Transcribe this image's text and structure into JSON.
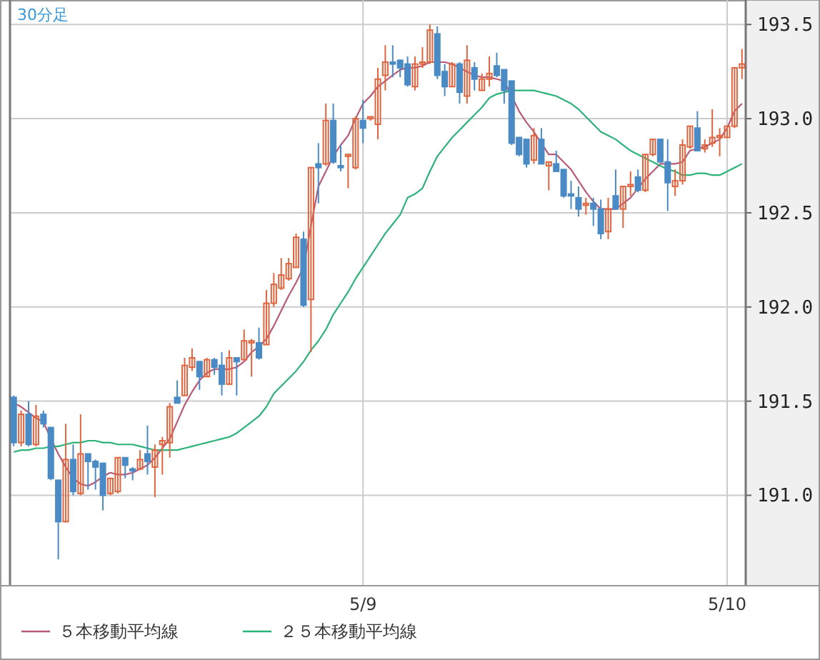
{
  "chart_data": {
    "type": "candlestick",
    "title": "30分足",
    "categories": [
      null,
      null,
      null,
      null,
      null,
      null,
      null,
      null,
      null,
      null,
      null,
      null,
      null,
      null,
      null,
      null,
      null,
      null,
      null,
      null,
      null,
      null,
      null,
      null,
      null,
      null,
      null,
      null,
      null,
      null,
      null,
      null,
      null,
      null,
      null,
      null,
      null,
      null,
      null,
      null,
      null,
      null,
      null,
      null,
      null,
      null,
      null,
      "5/9",
      null,
      null,
      null,
      null,
      null,
      null,
      null,
      null,
      null,
      null,
      null,
      null,
      null,
      null,
      null,
      null,
      null,
      null,
      null,
      null,
      null,
      null,
      null,
      null,
      null,
      null,
      null,
      null,
      null,
      null,
      null,
      null,
      null,
      null,
      null,
      null,
      null,
      null,
      null,
      null,
      null,
      null,
      null,
      null,
      null,
      null,
      null,
      null,
      "5/10",
      null,
      null
    ],
    "ohlc": [
      [
        191.52,
        191.53,
        191.26,
        191.28
      ],
      [
        191.28,
        191.45,
        191.26,
        191.43
      ],
      [
        191.43,
        191.5,
        191.26,
        191.27
      ],
      [
        191.27,
        191.48,
        191.26,
        191.42
      ],
      [
        191.43,
        191.45,
        191.36,
        191.38
      ],
      [
        191.36,
        191.36,
        191.08,
        191.09
      ],
      [
        191.08,
        191.08,
        190.66,
        190.86
      ],
      [
        190.86,
        191.38,
        190.86,
        191.19
      ],
      [
        191.19,
        191.27,
        191.0,
        191.02
      ],
      [
        191.01,
        191.43,
        191.0,
        191.22
      ],
      [
        191.22,
        191.22,
        191.03,
        191.18
      ],
      [
        191.18,
        191.19,
        191.03,
        191.15
      ],
      [
        191.17,
        191.17,
        190.92,
        191.0
      ],
      [
        191.01,
        191.09,
        191.0,
        191.09
      ],
      [
        191.02,
        191.2,
        191.01,
        191.2
      ],
      [
        191.2,
        191.2,
        191.09,
        191.16
      ],
      [
        191.14,
        191.15,
        191.08,
        191.13
      ],
      [
        191.14,
        191.24,
        191.14,
        191.19
      ],
      [
        191.22,
        191.37,
        191.11,
        191.18
      ],
      [
        191.15,
        191.27,
        190.99,
        191.24
      ],
      [
        191.27,
        191.31,
        191.11,
        191.29
      ],
      [
        191.28,
        191.49,
        191.2,
        191.47
      ],
      [
        191.52,
        191.61,
        191.49,
        191.49
      ],
      [
        191.53,
        191.73,
        191.53,
        191.69
      ],
      [
        191.68,
        191.78,
        191.66,
        191.73
      ],
      [
        191.71,
        191.71,
        191.56,
        191.63
      ],
      [
        191.63,
        191.73,
        191.63,
        191.72
      ],
      [
        191.72,
        191.73,
        191.64,
        191.68
      ],
      [
        191.69,
        191.76,
        191.53,
        191.59
      ],
      [
        191.59,
        191.77,
        191.59,
        191.73
      ],
      [
        191.73,
        191.73,
        191.53,
        191.71
      ],
      [
        191.72,
        191.88,
        191.72,
        191.82
      ],
      [
        191.81,
        191.83,
        191.63,
        191.82
      ],
      [
        191.81,
        191.89,
        191.72,
        191.73
      ],
      [
        191.8,
        192.09,
        191.8,
        192.02
      ],
      [
        192.02,
        192.18,
        192.0,
        192.12
      ],
      [
        192.1,
        192.26,
        192.09,
        192.17
      ],
      [
        192.15,
        192.26,
        192.14,
        192.23
      ],
      [
        192.21,
        192.39,
        192.21,
        192.37
      ],
      [
        192.36,
        192.4,
        192.0,
        192.01
      ],
      [
        192.04,
        192.74,
        191.76,
        192.74
      ],
      [
        192.76,
        192.87,
        192.55,
        192.74
      ],
      [
        192.76,
        193.08,
        192.75,
        192.99
      ],
      [
        192.99,
        193.08,
        192.76,
        192.77
      ],
      [
        192.75,
        192.86,
        192.72,
        192.74
      ],
      [
        192.8,
        192.81,
        192.63,
        192.81
      ],
      [
        192.74,
        193.01,
        192.73,
        193.0
      ],
      [
        192.99,
        193.1,
        192.87,
        192.95
      ],
      [
        193.0,
        193.01,
        192.99,
        193.01
      ],
      [
        192.97,
        193.27,
        192.89,
        193.21
      ],
      [
        193.23,
        193.39,
        193.15,
        193.3
      ],
      [
        193.3,
        193.39,
        193.22,
        193.29
      ],
      [
        193.31,
        193.31,
        193.22,
        193.27
      ],
      [
        193.29,
        193.33,
        193.17,
        193.18
      ],
      [
        193.17,
        193.33,
        193.15,
        193.29
      ],
      [
        193.29,
        193.38,
        193.27,
        193.3
      ],
      [
        193.3,
        193.5,
        193.29,
        193.47
      ],
      [
        193.45,
        193.49,
        193.21,
        193.23
      ],
      [
        193.25,
        193.29,
        193.12,
        193.17
      ],
      [
        193.17,
        193.3,
        193.17,
        193.29
      ],
      [
        193.29,
        193.3,
        193.08,
        193.14
      ],
      [
        193.12,
        193.39,
        193.08,
        193.31
      ],
      [
        193.27,
        193.3,
        193.15,
        193.21
      ],
      [
        193.15,
        193.24,
        193.15,
        193.21
      ],
      [
        193.21,
        193.33,
        193.17,
        193.24
      ],
      [
        193.28,
        193.35,
        193.22,
        193.23
      ],
      [
        193.26,
        193.26,
        193.08,
        193.15
      ],
      [
        193.2,
        193.2,
        192.86,
        192.87
      ],
      [
        192.9,
        192.9,
        192.8,
        192.81
      ],
      [
        192.89,
        192.89,
        192.74,
        192.76
      ],
      [
        192.78,
        192.95,
        192.76,
        192.91
      ],
      [
        192.89,
        192.95,
        192.76,
        192.76
      ],
      [
        192.75,
        192.77,
        192.62,
        192.77
      ],
      [
        192.76,
        192.83,
        192.72,
        192.72
      ],
      [
        192.73,
        192.73,
        192.58,
        192.59
      ],
      [
        192.6,
        192.67,
        192.52,
        192.59
      ],
      [
        192.58,
        192.64,
        192.48,
        192.52
      ],
      [
        192.54,
        192.58,
        192.49,
        192.55
      ],
      [
        192.55,
        192.58,
        192.43,
        192.52
      ],
      [
        192.52,
        192.57,
        192.36,
        192.39
      ],
      [
        192.4,
        192.58,
        192.36,
        192.52
      ],
      [
        192.59,
        192.73,
        192.52,
        192.52
      ],
      [
        192.52,
        192.64,
        192.42,
        192.64
      ],
      [
        192.64,
        192.72,
        192.59,
        192.65
      ],
      [
        192.69,
        192.73,
        192.61,
        192.62
      ],
      [
        192.62,
        192.81,
        192.61,
        192.81
      ],
      [
        192.81,
        192.89,
        192.8,
        192.89
      ],
      [
        192.89,
        192.89,
        192.77,
        192.77
      ],
      [
        192.77,
        192.89,
        192.51,
        192.66
      ],
      [
        192.64,
        192.73,
        192.59,
        192.67
      ],
      [
        192.67,
        192.89,
        192.65,
        192.86
      ],
      [
        192.85,
        192.96,
        192.84,
        192.96
      ],
      [
        192.95,
        193.04,
        192.83,
        192.83
      ],
      [
        192.84,
        192.89,
        192.82,
        192.86
      ],
      [
        192.87,
        193.05,
        192.85,
        192.9
      ],
      [
        192.9,
        192.95,
        192.8,
        192.91
      ],
      [
        192.9,
        192.96,
        192.9,
        192.96
      ],
      [
        192.96,
        193.27,
        192.95,
        193.27
      ],
      [
        193.27,
        193.37,
        193.21,
        193.29
      ]
    ],
    "colors": [
      "#4a8bc6",
      "#e0653f",
      "#4a8bc6",
      "#e0653f",
      "#4a8bc6",
      "#4a8bc6",
      "#4a8bc6",
      "#e0653f",
      "#4a8bc6",
      "#e0653f",
      "#4a8bc6",
      "#4a8bc6",
      "#4a8bc6",
      "#e0653f",
      "#e0653f",
      "#4a8bc6",
      "#4a8bc6",
      "#e0653f",
      "#4a8bc6",
      "#e0653f",
      "#e0653f",
      "#e0653f",
      "#4a8bc6",
      "#e0653f",
      "#e0653f",
      "#4a8bc6",
      "#e0653f",
      "#4a8bc6",
      "#4a8bc6",
      "#e0653f",
      "#4a8bc6",
      "#e0653f",
      "#e0653f",
      "#4a8bc6",
      "#e0653f",
      "#e0653f",
      "#e0653f",
      "#e0653f",
      "#e0653f",
      "#4a8bc6",
      "#e0653f",
      "#4a8bc6",
      "#e0653f",
      "#4a8bc6",
      "#4a8bc6",
      "#e0653f",
      "#e0653f",
      "#4a8bc6",
      "#e0653f",
      "#e0653f",
      "#e0653f",
      "#4a8bc6",
      "#4a8bc6",
      "#4a8bc6",
      "#e0653f",
      "#e0653f",
      "#e0653f",
      "#4a8bc6",
      "#4a8bc6",
      "#e0653f",
      "#4a8bc6",
      "#e0653f",
      "#4a8bc6",
      "#e0653f",
      "#e0653f",
      "#4a8bc6",
      "#4a8bc6",
      "#4a8bc6",
      "#4a8bc6",
      "#4a8bc6",
      "#e0653f",
      "#4a8bc6",
      "#e0653f",
      "#4a8bc6",
      "#4a8bc6",
      "#4a8bc6",
      "#4a8bc6",
      "#e0653f",
      "#4a8bc6",
      "#4a8bc6",
      "#e0653f",
      "#4a8bc6",
      "#e0653f",
      "#e0653f",
      "#4a8bc6",
      "#e0653f",
      "#e0653f",
      "#4a8bc6",
      "#4a8bc6",
      "#e0653f",
      "#e0653f",
      "#e0653f",
      "#4a8bc6",
      "#e0653f",
      "#e0653f",
      "#e0653f",
      "#e0653f",
      "#e0653f",
      "#e0653f"
    ],
    "series": [
      {
        "type": "line",
        "name": "５本移動平均線",
        "color": "#b85a78",
        "values": [
          191.49,
          191.47,
          191.44,
          191.41,
          191.39,
          191.3,
          191.22,
          191.15,
          191.09,
          191.06,
          191.05,
          191.07,
          191.1,
          191.12,
          191.11,
          191.11,
          191.12,
          191.14,
          191.16,
          191.2,
          191.25,
          191.3,
          191.39,
          191.48,
          191.55,
          191.61,
          191.65,
          191.67,
          191.67,
          191.67,
          191.68,
          191.71,
          191.76,
          191.79,
          191.83,
          191.9,
          191.98,
          192.06,
          192.13,
          192.21,
          192.43,
          192.64,
          192.72,
          192.8,
          192.86,
          192.91,
          193.0,
          193.08,
          193.12,
          193.17,
          193.2,
          193.23,
          193.26,
          193.27,
          193.27,
          193.28,
          193.3,
          193.3,
          193.3,
          193.29,
          193.27,
          193.25,
          193.23,
          193.22,
          193.22,
          193.21,
          193.2,
          193.12,
          193.04,
          192.98,
          192.93,
          192.87,
          192.81,
          192.81,
          192.77,
          192.73,
          192.67,
          192.61,
          192.56,
          192.52,
          192.52,
          192.52,
          192.55,
          192.58,
          192.63,
          192.68,
          192.72,
          192.76,
          192.76,
          192.76,
          192.77,
          192.83,
          192.84,
          192.85,
          192.87,
          192.89,
          192.95,
          193.04,
          193.08
        ]
      },
      {
        "type": "line",
        "name": "２５本移動平均線",
        "color": "#2db37a",
        "values": [
          191.23,
          191.24,
          191.24,
          191.25,
          191.25,
          191.26,
          191.26,
          191.27,
          191.28,
          191.28,
          191.29,
          191.29,
          191.28,
          191.28,
          191.27,
          191.27,
          191.27,
          191.26,
          191.25,
          191.24,
          191.24,
          191.24,
          191.24,
          191.25,
          191.26,
          191.27,
          191.28,
          191.29,
          191.3,
          191.31,
          191.33,
          191.36,
          191.39,
          191.42,
          191.47,
          191.54,
          191.58,
          191.62,
          191.66,
          191.71,
          191.77,
          191.82,
          191.88,
          191.96,
          192.02,
          192.08,
          192.15,
          192.21,
          192.27,
          192.33,
          192.39,
          192.44,
          192.49,
          192.58,
          192.6,
          192.63,
          192.72,
          192.8,
          192.85,
          192.9,
          192.94,
          192.98,
          193.02,
          193.06,
          193.11,
          193.13,
          193.14,
          193.15,
          193.15,
          193.15,
          193.15,
          193.14,
          193.13,
          193.12,
          193.1,
          193.08,
          193.05,
          193.01,
          192.97,
          192.93,
          192.91,
          192.89,
          192.86,
          192.83,
          192.81,
          192.79,
          192.77,
          192.75,
          192.73,
          192.72,
          192.7,
          192.7,
          192.71,
          192.71,
          192.7,
          192.7,
          192.72,
          192.74,
          192.76
        ]
      }
    ],
    "ylim": [
      190.52,
      193.63
    ],
    "yticks": [
      {
        "value": 191,
        "label": "191.0"
      },
      {
        "value": 191.5,
        "label": "191.5"
      },
      {
        "value": 192,
        "label": "192.0"
      },
      {
        "value": 192.5,
        "label": "192.5"
      },
      {
        "value": 193,
        "label": "193.0"
      },
      {
        "value": 193.5,
        "label": "193.5"
      }
    ],
    "grid": true,
    "legend": "bottom"
  }
}
